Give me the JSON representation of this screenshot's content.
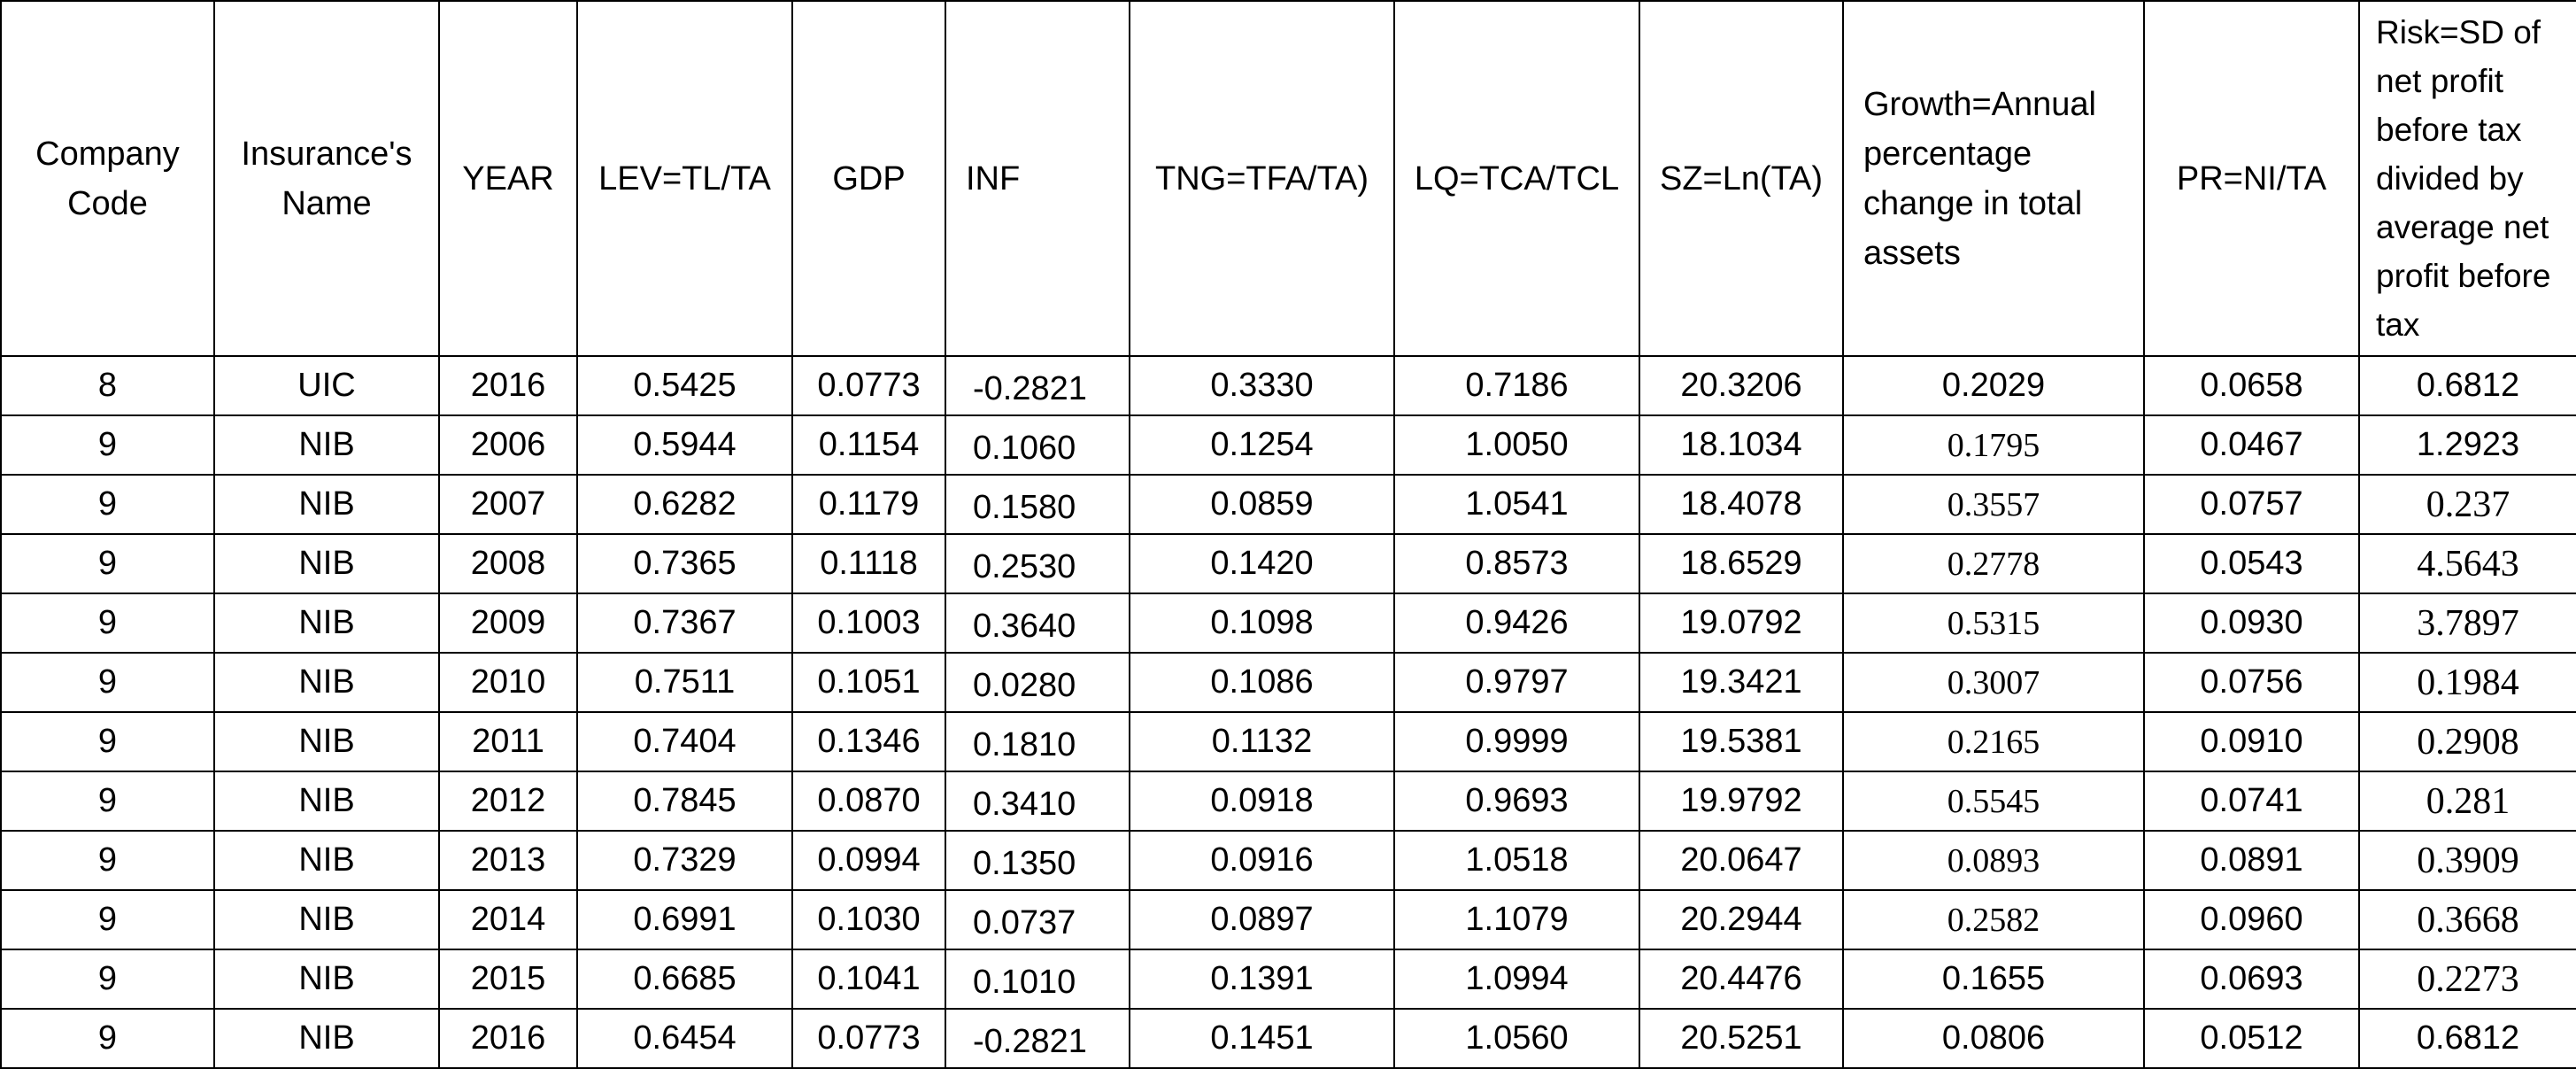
{
  "table": {
    "header": [
      "Company Code",
      "Insurance's Name",
      "YEAR",
      "LEV=TL/TA",
      "GDP",
      "INF",
      "TNG=TFA/TA)",
      "LQ=TCA/TCL",
      "SZ=Ln(TA)",
      "Growth=Annual percentage change in total assets",
      "PR=NI/TA",
      "Risk=SD of net profit before tax divided by average net profit before tax"
    ],
    "rows": [
      [
        "8",
        "UIC",
        "2016",
        "0.5425",
        "0.0773",
        "-0.2821",
        "0.3330",
        "0.7186",
        "20.3206",
        "0.2029",
        "0.0658",
        "0.6812"
      ],
      [
        "9",
        "NIB",
        "2006",
        "0.5944",
        "0.1154",
        "0.1060",
        "0.1254",
        "1.0050",
        "18.1034",
        "0.1795",
        "0.0467",
        "1.2923"
      ],
      [
        "9",
        "NIB",
        "2007",
        "0.6282",
        "0.1179",
        "0.1580",
        "0.0859",
        "1.0541",
        "18.4078",
        "0.3557",
        "0.0757",
        "0.237"
      ],
      [
        "9",
        "NIB",
        "2008",
        "0.7365",
        "0.1118",
        "0.2530",
        "0.1420",
        "0.8573",
        "18.6529",
        "0.2778",
        "0.0543",
        "4.5643"
      ],
      [
        "9",
        "NIB",
        "2009",
        "0.7367",
        "0.1003",
        "0.3640",
        "0.1098",
        "0.9426",
        "19.0792",
        "0.5315",
        "0.0930",
        "3.7897"
      ],
      [
        "9",
        "NIB",
        "2010",
        "0.7511",
        "0.1051",
        "0.0280",
        "0.1086",
        "0.9797",
        "19.3421",
        "0.3007",
        "0.0756",
        "0.1984"
      ],
      [
        "9",
        "NIB",
        "2011",
        "0.7404",
        "0.1346",
        "0.1810",
        "0.1132",
        "0.9999",
        "19.5381",
        "0.2165",
        "0.0910",
        "0.2908"
      ],
      [
        "9",
        "NIB",
        "2012",
        "0.7845",
        "0.0870",
        "0.3410",
        "0.0918",
        "0.9693",
        "19.9792",
        "0.5545",
        "0.0741",
        "0.281"
      ],
      [
        "9",
        "NIB",
        "2013",
        "0.7329",
        "0.0994",
        "0.1350",
        "0.0916",
        "1.0518",
        "20.0647",
        "0.0893",
        "0.0891",
        "0.3909"
      ],
      [
        "9",
        "NIB",
        "2014",
        "0.6991",
        "0.1030",
        "0.0737",
        "0.0897",
        "1.1079",
        "20.2944",
        "0.2582",
        "0.0960",
        "0.3668"
      ],
      [
        "9",
        "NIB",
        "2015",
        "0.6685",
        "0.1041",
        "0.1010",
        "0.1391",
        "1.0994",
        "20.4476",
        "0.1655",
        "0.0693",
        "0.2273"
      ],
      [
        "9",
        "NIB",
        "2016",
        "0.6454",
        "0.0773",
        "-0.2821",
        "0.1451",
        "1.0560",
        "20.5251",
        "0.0806",
        "0.0512",
        "0.6812"
      ]
    ]
  }
}
